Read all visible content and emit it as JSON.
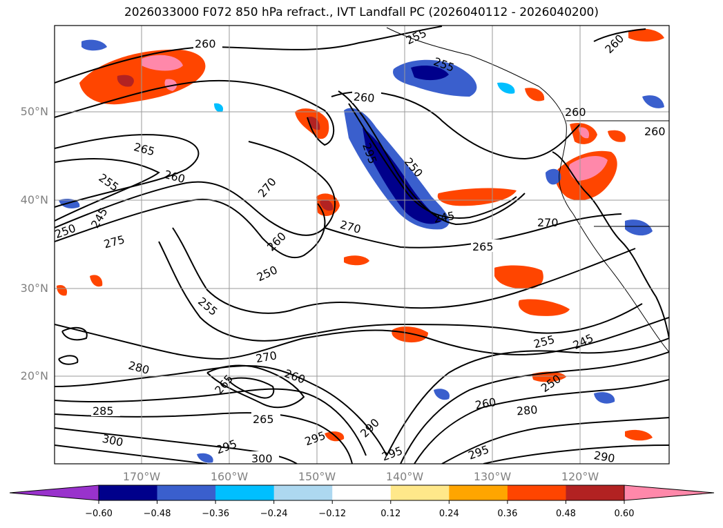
{
  "title": "2026033000 F072 850 hPa refract., IVT Landfall PC (2026040112 - 2026040200)",
  "lat_labels": [
    "50°N",
    "40°N",
    "30°N",
    "20°N"
  ],
  "lon_labels": [
    "170°W",
    "160°W",
    "150°W",
    "140°W",
    "130°W",
    "120°W"
  ],
  "contour_labels": [
    "260",
    "255",
    "255",
    "265",
    "255",
    "260",
    "260",
    "260",
    "260",
    "270",
    "295",
    "250",
    "245",
    "250",
    "275",
    "270",
    "245",
    "270",
    "260",
    "265",
    "250",
    "255",
    "280",
    "270",
    "265",
    "260",
    "255",
    "245",
    "250",
    "285",
    "265",
    "260",
    "280",
    "300",
    "295",
    "300",
    "295",
    "290",
    "295",
    "295",
    "290",
    "260"
  ],
  "colorbar": {
    "tick_labels": [
      "−0.60",
      "−0.48",
      "−0.36",
      "−0.24",
      "−0.12",
      "0.12",
      "0.24",
      "0.36",
      "0.48",
      "0.60"
    ],
    "colors": [
      "#9932cc",
      "#00008b",
      "#3a5fcd",
      "#00bfff",
      "#add8f0",
      "#ffffff",
      "#ffe88a",
      "#ffa500",
      "#ff4500",
      "#b22222",
      "#ff88aa"
    ]
  }
}
